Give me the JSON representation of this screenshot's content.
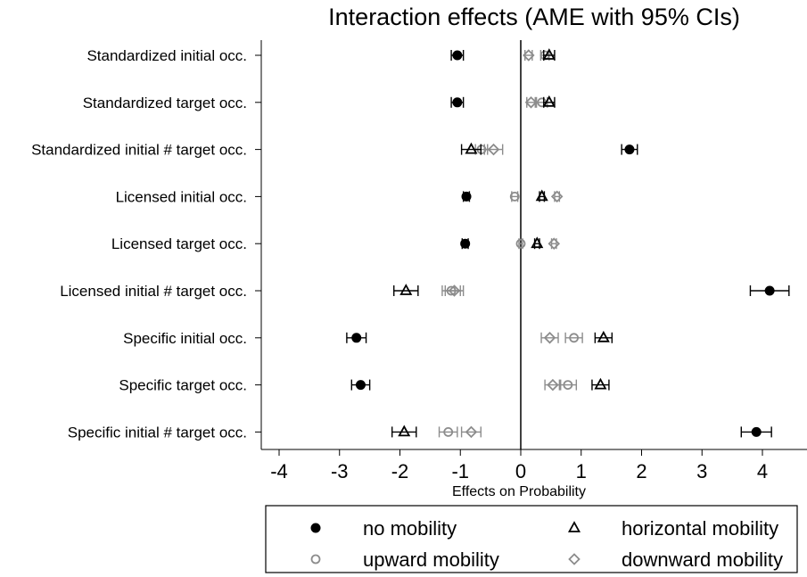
{
  "chart_data": {
    "type": "scatter",
    "title": "Interaction effects (AME with 95% CIs)",
    "xlabel": "Effects on Probability",
    "ylabel": "",
    "xlim": [
      -4.3,
      4.6
    ],
    "xticks": [
      -4,
      -3,
      -2,
      -1,
      0,
      1,
      2,
      3,
      4
    ],
    "grid": false,
    "reference_line": 0,
    "legend_position": "bottom",
    "categories": [
      "Standardized initial occ.",
      "Standardized target occ.",
      "Standardized initial # target occ.",
      "Licensed initial occ.",
      "Licensed target occ.",
      "Licensed initial # target occ.",
      "Specific initial occ.",
      "Specific target occ.",
      "Specific initial # target occ."
    ],
    "series": [
      {
        "name": "no mobility",
        "marker": "filled-circle",
        "color": "#000000",
        "values": [
          -1.05,
          -1.05,
          1.8,
          -0.9,
          -0.92,
          4.12,
          -2.72,
          -2.65,
          3.9
        ],
        "ci_low": [
          -1.15,
          -1.15,
          1.67,
          -0.95,
          -0.97,
          3.8,
          -2.88,
          -2.8,
          3.65
        ],
        "ci_high": [
          -0.95,
          -0.95,
          1.93,
          -0.85,
          -0.87,
          4.44,
          -2.56,
          -2.5,
          4.15
        ]
      },
      {
        "name": "horizontal mobility",
        "marker": "hollow-triangle",
        "color": "#000000",
        "values": [
          0.47,
          0.47,
          -0.82,
          0.35,
          0.27,
          -1.9,
          1.37,
          1.32,
          -1.93
        ],
        "ci_low": [
          0.38,
          0.38,
          -0.98,
          0.31,
          0.23,
          -2.1,
          1.23,
          1.18,
          -2.13
        ],
        "ci_high": [
          0.56,
          0.56,
          -0.66,
          0.39,
          0.31,
          -1.7,
          1.51,
          1.46,
          -1.73
        ]
      },
      {
        "name": "upward mobility",
        "marker": "hollow-circle",
        "color": "#8c8c8c",
        "values": [
          0.4,
          0.35,
          -0.65,
          -0.1,
          0.0,
          -1.15,
          0.88,
          0.78,
          -1.2
        ],
        "ci_low": [
          0.33,
          0.26,
          -0.75,
          -0.15,
          -0.03,
          -1.3,
          0.74,
          0.64,
          -1.35
        ],
        "ci_high": [
          0.47,
          0.44,
          -0.55,
          -0.05,
          0.03,
          -1.0,
          1.02,
          0.92,
          -1.05
        ]
      },
      {
        "name": "downward mobility",
        "marker": "hollow-diamond",
        "color": "#8c8c8c",
        "values": [
          0.13,
          0.17,
          -0.45,
          0.6,
          0.55,
          -1.1,
          0.48,
          0.53,
          -0.82
        ],
        "ci_low": [
          0.07,
          0.1,
          -0.6,
          0.56,
          0.51,
          -1.25,
          0.34,
          0.4,
          -0.98
        ],
        "ci_high": [
          0.19,
          0.24,
          -0.3,
          0.64,
          0.59,
          -0.95,
          0.62,
          0.66,
          -0.66
        ]
      }
    ]
  }
}
